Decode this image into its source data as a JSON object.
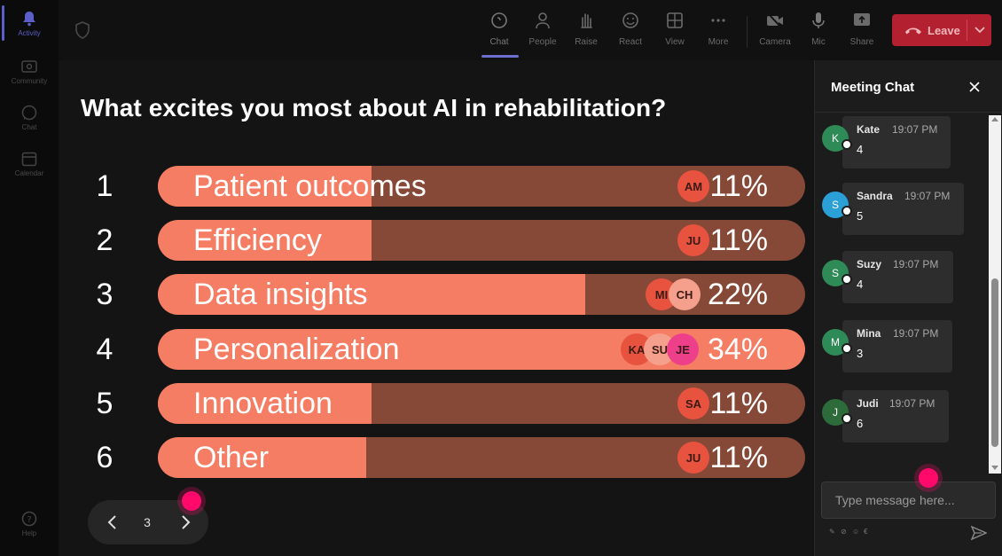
{
  "rail": {
    "items": [
      {
        "label": "Activity",
        "icon": "bell-icon",
        "active": true
      },
      {
        "label": "Community",
        "icon": "community-icon",
        "active": false
      },
      {
        "label": "Chat",
        "icon": "chat-icon",
        "active": false
      },
      {
        "label": "Calendar",
        "icon": "calendar-icon",
        "active": false
      }
    ],
    "help_label": "Help"
  },
  "toolbar": {
    "buttons": [
      {
        "label": "Chat",
        "icon": "chat-icon",
        "active": true
      },
      {
        "label": "People",
        "icon": "people-icon",
        "active": false
      },
      {
        "label": "Raise",
        "icon": "raise-hand-icon",
        "active": false
      },
      {
        "label": "React",
        "icon": "react-icon",
        "active": false
      },
      {
        "label": "View",
        "icon": "view-icon",
        "active": false
      },
      {
        "label": "More",
        "icon": "more-icon",
        "active": false
      },
      {
        "label": "Camera",
        "icon": "camera-off-icon",
        "active": false
      },
      {
        "label": "Mic",
        "icon": "mic-icon",
        "active": false
      },
      {
        "label": "Share",
        "icon": "share-icon",
        "active": false
      }
    ],
    "leave_label": "Leave"
  },
  "poll": {
    "question": "What excites you most about AI in rehabilitation?",
    "options": [
      {
        "rank": "1",
        "label": "Patient outcomes",
        "percent": "11%",
        "value": 11,
        "avatars": [
          "AM"
        ]
      },
      {
        "rank": "2",
        "label": "Efficiency",
        "percent": "11%",
        "value": 11,
        "avatars": [
          "JU"
        ]
      },
      {
        "rank": "3",
        "label": "Data insights",
        "percent": "22%",
        "value": 22,
        "avatars": [
          "MI",
          "CH"
        ]
      },
      {
        "rank": "4",
        "label": "Personalization",
        "percent": "34%",
        "value": 34,
        "avatars": [
          "KA",
          "SU",
          "JE"
        ]
      },
      {
        "rank": "5",
        "label": "Innovation",
        "percent": "11%",
        "value": 11,
        "avatars": [
          "SA"
        ]
      },
      {
        "rank": "6",
        "label": "Other",
        "percent": "11%",
        "value": 11,
        "avatars": [
          "JU"
        ]
      }
    ]
  },
  "pager": {
    "page": "3"
  },
  "chat": {
    "title": "Meeting Chat",
    "messages": [
      {
        "initial": "K",
        "name": "Kate",
        "time": "19:07 PM",
        "text": "4",
        "color": "#2e8b57"
      },
      {
        "initial": "S",
        "name": "Sandra",
        "time": "19:07 PM",
        "text": "5",
        "color": "#2aa0d6"
      },
      {
        "initial": "S",
        "name": "Suzy",
        "time": "19:07 PM",
        "text": "4",
        "color": "#2e8b57"
      },
      {
        "initial": "M",
        "name": "Mina",
        "time": "19:07 PM",
        "text": "3",
        "color": "#2e8b57"
      },
      {
        "initial": "J",
        "name": "Judi",
        "time": "19:07 PM",
        "text": "6",
        "color": "#2e6b3a"
      }
    ],
    "input_placeholder": "Type message here..."
  },
  "colors": {
    "bar_fill": "#f47d64",
    "bar_track": "#874937",
    "leave": "#b3202f",
    "accent": "#5b5fc7",
    "cursor": "#ff0a6a"
  }
}
